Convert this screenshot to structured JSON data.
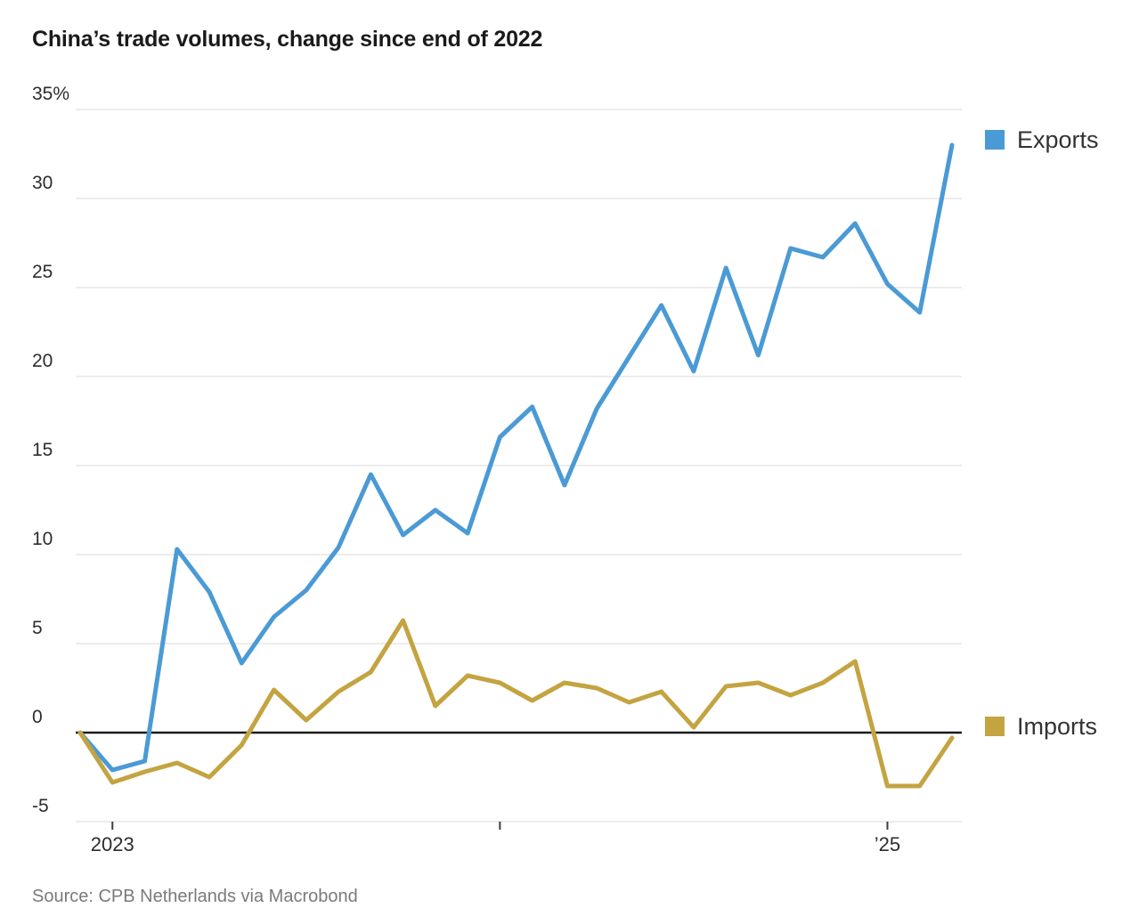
{
  "chart": {
    "title": "China’s trade volumes, change since end of 2022",
    "source": "Source: CPB Netherlands via Macrobond",
    "legend": [
      {
        "label": "Exports",
        "color": "#4A9AD5"
      },
      {
        "label": "Imports",
        "color": "#C3A441"
      }
    ]
  },
  "chart_data": {
    "type": "line",
    "title": "China’s trade volumes, change since end of 2022",
    "unit": "%",
    "x": [
      "Dec 2022",
      "Jan 2023",
      "Feb 2023",
      "Mar 2023",
      "Apr 2023",
      "May 2023",
      "Jun 2023",
      "Jul 2023",
      "Aug 2023",
      "Sep 2023",
      "Oct 2023",
      "Nov 2023",
      "Dec 2023",
      "Jan 2024",
      "Feb 2024",
      "Mar 2024",
      "Apr 2024",
      "May 2024",
      "Jun 2024",
      "Jul 2024",
      "Aug 2024",
      "Sep 2024",
      "Oct 2024",
      "Nov 2024",
      "Dec 2024",
      "Jan 2025",
      "Feb 2025",
      "Mar 2025"
    ],
    "series": [
      {
        "name": "Exports",
        "color": "#4A9AD5",
        "values": [
          0.0,
          -2.1,
          -1.6,
          10.3,
          7.9,
          3.9,
          6.5,
          8.0,
          10.4,
          14.5,
          11.1,
          12.5,
          11.2,
          16.6,
          18.3,
          13.9,
          18.2,
          21.1,
          24.0,
          20.3,
          26.1,
          21.2,
          27.2,
          26.7,
          28.6,
          25.2,
          23.6,
          33.0
        ]
      },
      {
        "name": "Imports",
        "color": "#C3A441",
        "values": [
          0.0,
          -2.8,
          -2.2,
          -1.7,
          -2.5,
          -0.7,
          2.4,
          0.7,
          2.3,
          3.4,
          6.3,
          1.5,
          3.2,
          2.8,
          1.8,
          2.8,
          2.5,
          1.7,
          2.3,
          0.3,
          2.6,
          2.8,
          2.1,
          2.8,
          4.0,
          -3.0,
          -3.0,
          -0.3
        ]
      }
    ],
    "y_ticks": [
      {
        "value": 35,
        "label": "35%"
      },
      {
        "value": 30,
        "label": "30"
      },
      {
        "value": 25,
        "label": "25"
      },
      {
        "value": 20,
        "label": "20"
      },
      {
        "value": 15,
        "label": "15"
      },
      {
        "value": 10,
        "label": "10"
      },
      {
        "value": 5,
        "label": "5"
      },
      {
        "value": 0,
        "label": "0"
      },
      {
        "value": -5,
        "label": "-5"
      }
    ],
    "x_ticks": [
      {
        "index": 1,
        "label": "2023"
      },
      {
        "index": 13,
        "label": ""
      },
      {
        "index": 25,
        "label": "’25"
      }
    ],
    "ylim": [
      -5,
      35
    ],
    "grid": "horizontal",
    "zero_line": true,
    "legend_position": "right, aligned with series endpoints",
    "source": "Source: CPB Netherlands via Macrobond"
  }
}
